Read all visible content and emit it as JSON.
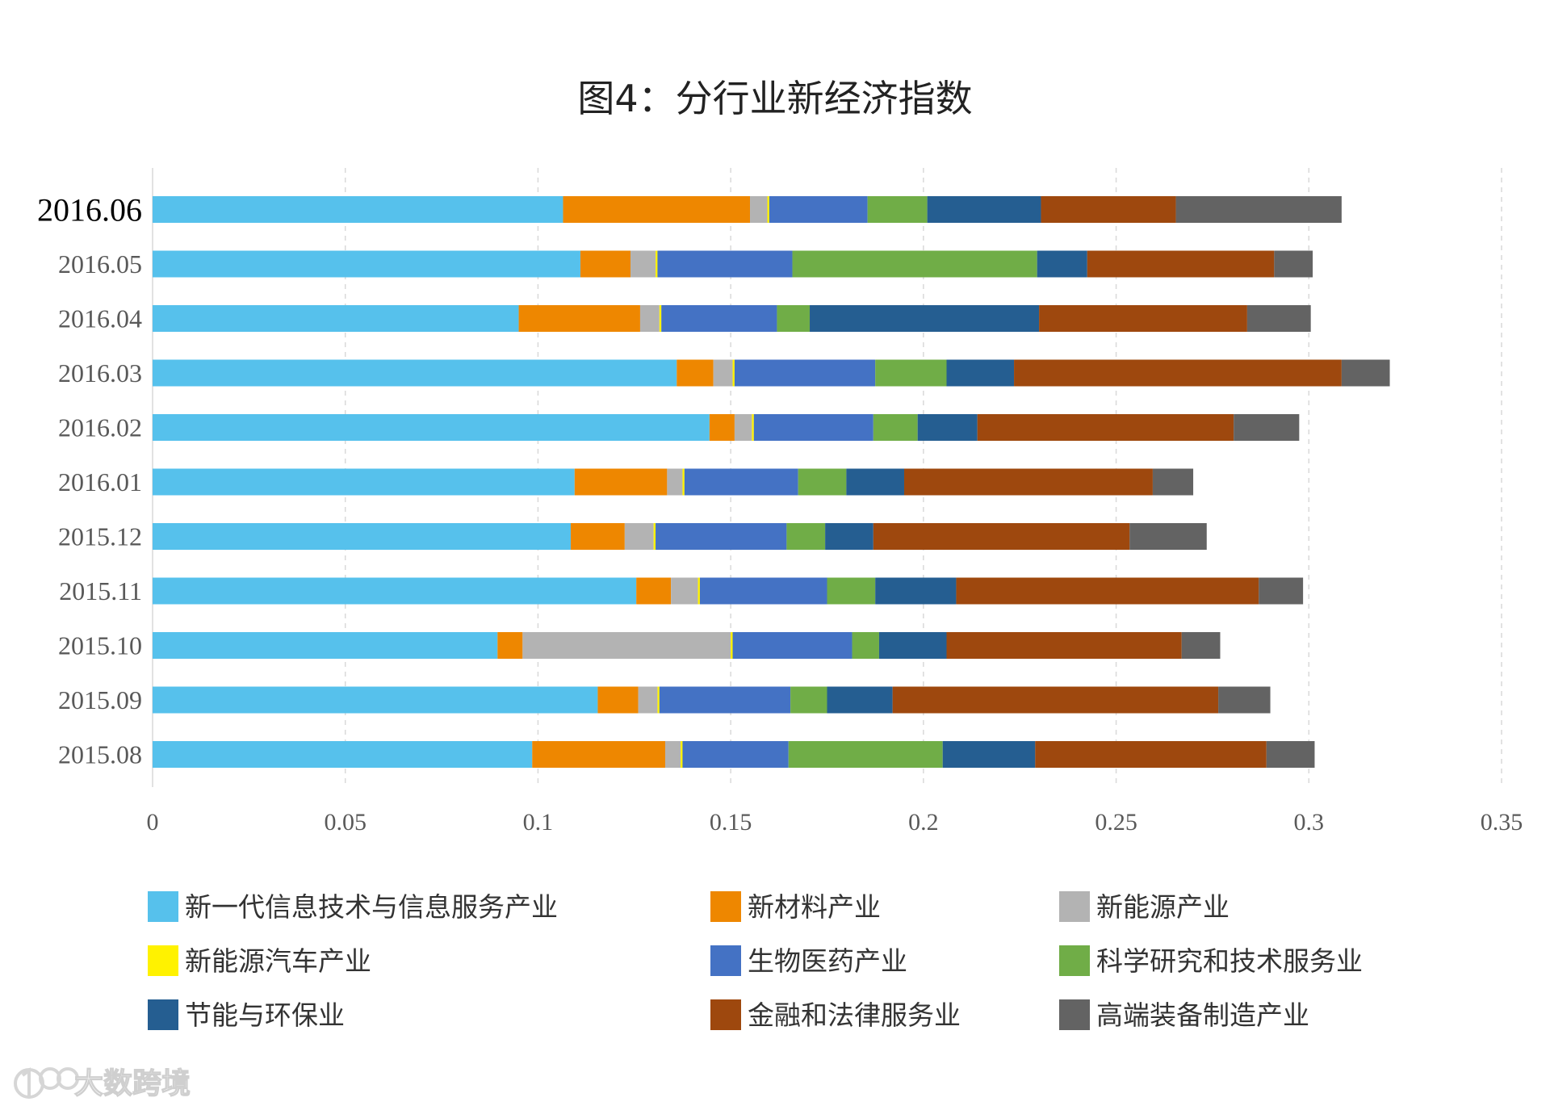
{
  "chart_data": {
    "type": "bar",
    "orientation": "horizontal",
    "stacked": true,
    "title": "图4：分行业新经济指数",
    "xlabel": "",
    "ylabel": "",
    "xlim": [
      0,
      0.35
    ],
    "xticks": [
      0,
      0.05,
      0.1,
      0.15,
      0.2,
      0.25,
      0.3,
      0.35
    ],
    "xtick_labels": [
      "0",
      "0.05",
      "0.1",
      "0.15",
      "0.2",
      "0.25",
      "0.3",
      "0.35"
    ],
    "grid": "vertical dashed",
    "legend_position": "bottom",
    "highlighted_category": "2016.06",
    "categories": [
      "2016.06",
      "2016.05",
      "2016.04",
      "2016.03",
      "2016.02",
      "2016.01",
      "2015.12",
      "2015.11",
      "2015.10",
      "2015.09",
      "2015.08"
    ],
    "series": [
      {
        "name": "新一代信息技术与信息服务产业",
        "color": "#56C1EC",
        "values": [
          0.1065,
          0.111,
          0.095,
          0.136,
          0.1445,
          0.1095,
          0.1085,
          0.1255,
          0.0895,
          0.1155,
          0.0985
        ]
      },
      {
        "name": "新材料产业",
        "color": "#EE8700",
        "values": [
          0.0485,
          0.013,
          0.0315,
          0.0095,
          0.0065,
          0.024,
          0.014,
          0.009,
          0.0065,
          0.0105,
          0.0345
        ]
      },
      {
        "name": "新能源产业",
        "color": "#B3B3B3",
        "values": [
          0.0045,
          0.0065,
          0.005,
          0.005,
          0.0045,
          0.004,
          0.0075,
          0.007,
          0.054,
          0.005,
          0.004
        ]
      },
      {
        "name": "新能源汽车产业",
        "color": "#FFF200",
        "values": [
          0.0005,
          0.0005,
          0.0005,
          0.0005,
          0.0005,
          0.0005,
          0.0005,
          0.0005,
          0.0005,
          0.0005,
          0.0005
        ]
      },
      {
        "name": "生物医药产业",
        "color": "#4472C4",
        "values": [
          0.0255,
          0.035,
          0.03,
          0.0365,
          0.031,
          0.0295,
          0.034,
          0.033,
          0.031,
          0.034,
          0.0275
        ]
      },
      {
        "name": "科学研究和技术服务业",
        "color": "#70AD47",
        "values": [
          0.0155,
          0.0635,
          0.0085,
          0.0185,
          0.0115,
          0.0125,
          0.01,
          0.0125,
          0.007,
          0.0095,
          0.04
        ]
      },
      {
        "name": "节能与环保业",
        "color": "#255E91",
        "values": [
          0.0295,
          0.013,
          0.0595,
          0.0175,
          0.0155,
          0.015,
          0.0125,
          0.021,
          0.0175,
          0.017,
          0.024
        ]
      },
      {
        "name": "金融和法律服务业",
        "color": "#9E480E",
        "values": [
          0.035,
          0.0485,
          0.054,
          0.085,
          0.0665,
          0.0645,
          0.0665,
          0.0785,
          0.061,
          0.0845,
          0.06
        ]
      },
      {
        "name": "高端装备制造产业",
        "color": "#636363",
        "values": [
          0.043,
          0.01,
          0.0165,
          0.0125,
          0.017,
          0.0105,
          0.02,
          0.0115,
          0.01,
          0.0135,
          0.0125
        ]
      }
    ]
  },
  "watermark": {
    "text": "大数跨境",
    "logo_icon": "100-logo-icon"
  }
}
